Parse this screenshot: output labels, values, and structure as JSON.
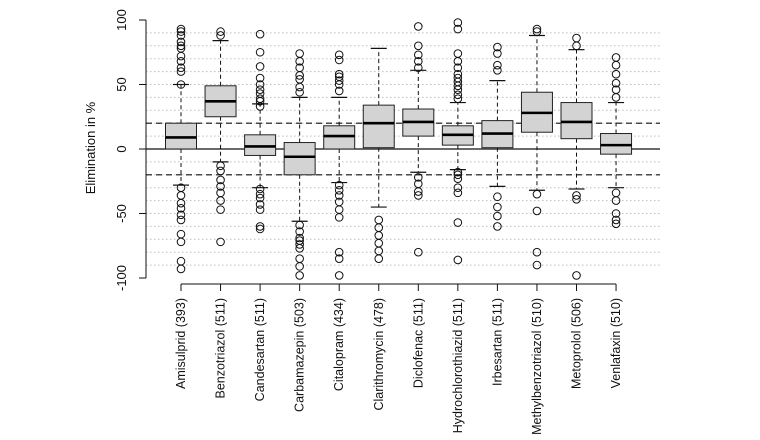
{
  "chart_data": {
    "type": "boxplot",
    "ylabel": "Elimination in %",
    "ylim": [
      -100,
      100
    ],
    "yticks": [
      -100,
      -50,
      0,
      50,
      100
    ],
    "grid": "horizontal dotted lines every 10 %",
    "reference_lines": [
      {
        "value": 0,
        "style": "solid"
      },
      {
        "value": 20,
        "style": "dashed"
      },
      {
        "value": -20,
        "style": "dashed"
      }
    ],
    "categories": [
      "Amisulprid (393)",
      "Benzotriazol (511)",
      "Candesartan (511)",
      "Carbamazepin (503)",
      "Citalopram (434)",
      "Clarithromycin (478)",
      "Diclofenac (511)",
      "Hydrochlorothiazid (511)",
      "Irbesartan (511)",
      "Methylbenzotriazol (510)",
      "Metoprolol (506)",
      "Venlafaxin (510)"
    ],
    "boxes": [
      {
        "whisker_low": -28,
        "q1": 0,
        "median": 9,
        "q3": 20,
        "whisker_high": 50,
        "outliers": [
          93,
          91,
          88,
          83,
          80,
          78,
          72,
          68,
          63,
          60,
          50,
          -30,
          -36,
          -42,
          -46,
          -51,
          -55,
          -66,
          -72,
          -87,
          -93
        ]
      },
      {
        "whisker_low": -10,
        "q1": 25,
        "median": 37,
        "q3": 49,
        "whisker_high": 84,
        "outliers": [
          91,
          88,
          -13,
          -17,
          -24,
          -29,
          -34,
          -40,
          -47,
          -72
        ]
      },
      {
        "whisker_low": -30,
        "q1": -5,
        "median": 2,
        "q3": 11,
        "whisker_high": 35,
        "outliers": [
          89,
          75,
          64,
          55,
          50,
          46,
          43,
          39,
          37,
          33,
          -31,
          -35,
          -38,
          -43,
          -47,
          -60,
          -62
        ]
      },
      {
        "whisker_low": -56,
        "q1": -20,
        "median": -6,
        "q3": 5,
        "whisker_high": 40,
        "outliers": [
          74,
          68,
          63,
          57,
          54,
          48,
          44,
          -59,
          -64,
          -69,
          -71,
          -74,
          -77,
          -85,
          -91,
          -98
        ]
      },
      {
        "whisker_low": -26,
        "q1": 0,
        "median": 10,
        "q3": 18,
        "whisker_high": 40,
        "outliers": [
          73,
          69,
          58,
          56,
          53,
          50,
          45,
          -28,
          -32,
          -36,
          -41,
          -47,
          -53,
          -80,
          -85,
          -98
        ]
      },
      {
        "whisker_low": -45,
        "q1": 1,
        "median": 20,
        "q3": 34,
        "whisker_high": 78,
        "outliers": [
          -55,
          -61,
          -67,
          -73,
          -79,
          -85
        ]
      },
      {
        "whisker_low": -18,
        "q1": 10,
        "median": 21,
        "q3": 31,
        "whisker_high": 61,
        "outliers": [
          95,
          80,
          73,
          68,
          63,
          -22,
          -27,
          -33,
          -36,
          -80
        ]
      },
      {
        "whisker_low": -16,
        "q1": 3,
        "median": 11,
        "q3": 18,
        "whisker_high": 36,
        "outliers": [
          98,
          93,
          74,
          68,
          63,
          58,
          55,
          52,
          49,
          46,
          42,
          39,
          -18,
          -20,
          -23,
          -30,
          -34,
          -57,
          -86
        ]
      },
      {
        "whisker_low": -29,
        "q1": 1,
        "median": 12,
        "q3": 22,
        "whisker_high": 53,
        "outliers": [
          79,
          74,
          65,
          61,
          -37,
          -45,
          -52,
          -60
        ]
      },
      {
        "whisker_low": -32,
        "q1": 13,
        "median": 28,
        "q3": 44,
        "whisker_high": 88,
        "outliers": [
          93,
          91,
          -35,
          -48,
          -80,
          -90
        ]
      },
      {
        "whisker_low": -31,
        "q1": 8,
        "median": 21,
        "q3": 36,
        "whisker_high": 77,
        "outliers": [
          86,
          80,
          -36,
          -39,
          -98
        ]
      },
      {
        "whisker_low": -30,
        "q1": -4,
        "median": 3,
        "q3": 12,
        "whisker_high": 36,
        "outliers": [
          71,
          65,
          58,
          51,
          46,
          40,
          -34,
          -40,
          -50,
          -55,
          -58
        ]
      }
    ]
  }
}
